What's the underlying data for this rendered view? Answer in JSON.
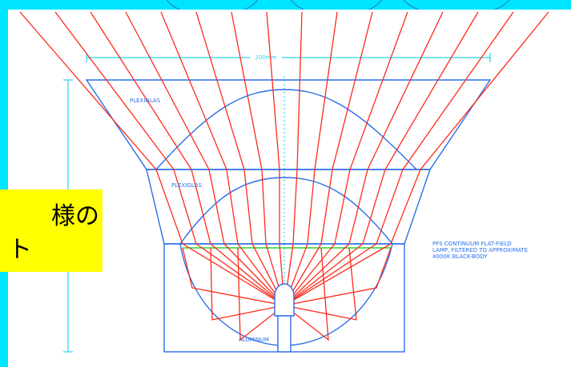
{
  "diagram": {
    "dimension": "200mm",
    "upper_label": "PLEXIGLAS",
    "lower_label": "PLEXIGLAS",
    "base_label": "ALUMINUM",
    "note": [
      "PFS CONTINUUM FLAT-FIELD",
      "LAMP, FILTERED TO APPROXIMATE",
      "4000K BLACK-BODY"
    ],
    "callout": [
      "様の",
      "ト"
    ]
  }
}
